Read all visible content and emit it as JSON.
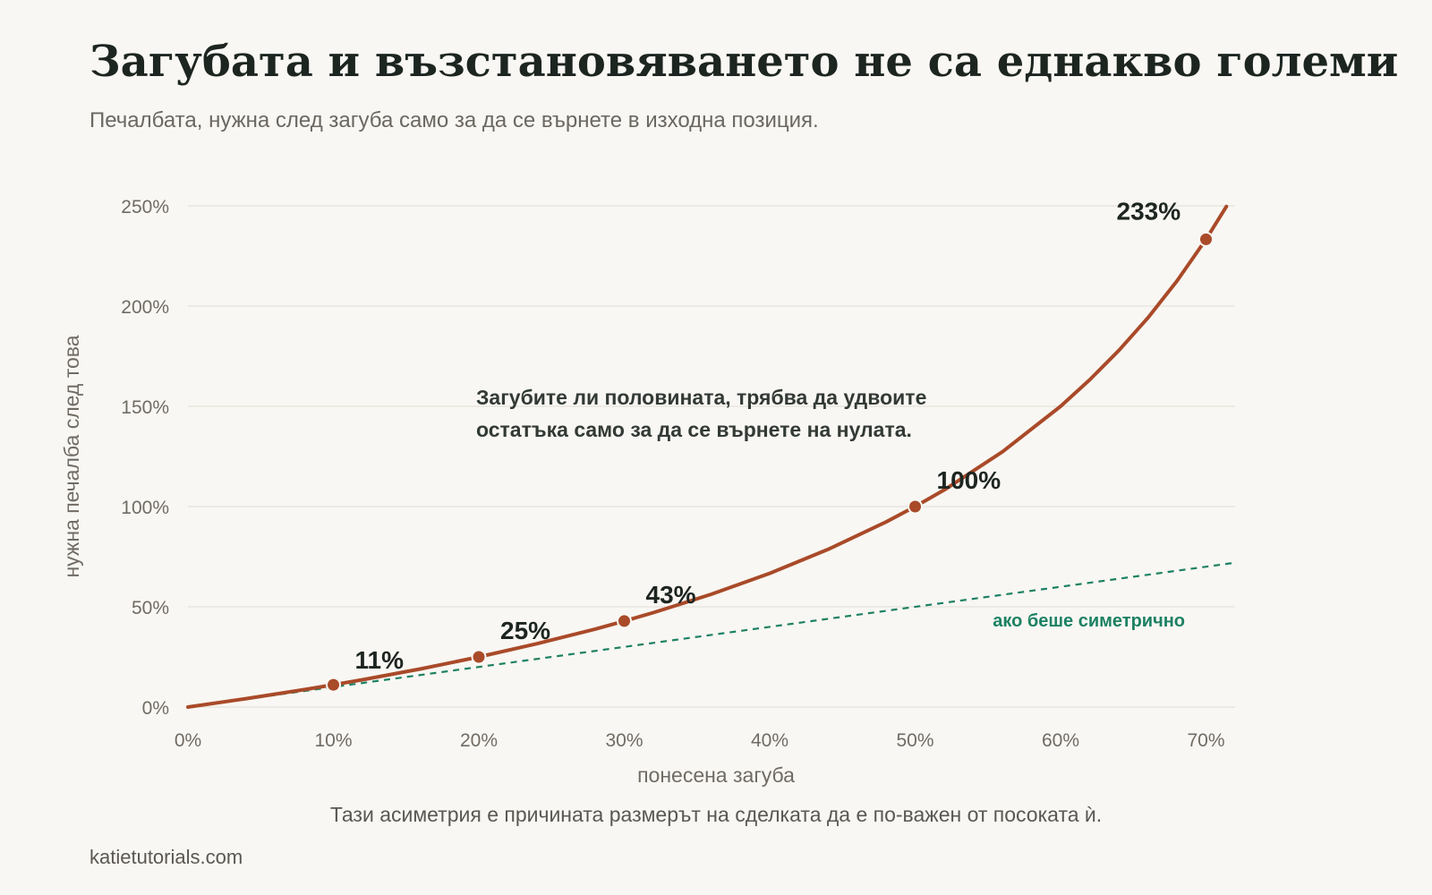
{
  "title": "Загубата и възстановяването не са еднакво големи",
  "subtitle": "Печалбата, нужна след загуба само за да се върнете в изходна позиция.",
  "caption": "Тази асиметрия е причината размерът на сделката да е по-важен от посоката ѝ.",
  "source": "katietutorials.com",
  "colors": {
    "curve": "#a94a29",
    "reference": "#1d8164",
    "grid": "#e5e2dc",
    "tick_text": "#706b64",
    "label_text": "#1d2521",
    "annotation_text": "#333a36",
    "background": "#f9f7f3"
  },
  "chart_data": {
    "type": "line",
    "xlabel": "понесена загуба",
    "ylabel": "нужна печалба след това",
    "xlim": [
      0,
      72
    ],
    "ylim": [
      0,
      250
    ],
    "x_ticks": [
      0,
      10,
      20,
      30,
      40,
      50,
      60,
      70
    ],
    "x_tick_labels": [
      "0%",
      "10%",
      "20%",
      "30%",
      "40%",
      "50%",
      "60%",
      "70%"
    ],
    "y_ticks": [
      0,
      50,
      100,
      150,
      200,
      250
    ],
    "y_tick_labels": [
      "0%",
      "50%",
      "100%",
      "150%",
      "200%",
      "250%"
    ],
    "grid": "horizontal",
    "series": [
      {
        "style": "solid",
        "x": [
          0,
          4,
          8,
          10,
          12,
          16,
          20,
          24,
          28,
          30,
          32,
          36,
          40,
          44,
          48,
          50,
          52,
          56,
          60,
          62,
          64,
          66,
          68,
          70,
          71.4
        ],
        "y": [
          0,
          4.2,
          8.7,
          11.1,
          13.6,
          19.0,
          25.0,
          31.6,
          38.9,
          42.9,
          47.1,
          56.3,
          66.7,
          78.6,
          92.3,
          100.0,
          108.3,
          127.3,
          150.0,
          163.2,
          177.8,
          194.1,
          212.5,
          233.3,
          249.7
        ]
      },
      {
        "name": "ако беше симетрично",
        "style": "dashed",
        "x": [
          0,
          72
        ],
        "y": [
          0,
          72
        ]
      }
    ],
    "highlighted_points": [
      {
        "x": 10,
        "y": 11.1,
        "label": "11%"
      },
      {
        "x": 20,
        "y": 25.0,
        "label": "25%"
      },
      {
        "x": 30,
        "y": 42.9,
        "label": "43%"
      },
      {
        "x": 50,
        "y": 100.0,
        "label": "100%"
      },
      {
        "x": 70,
        "y": 233.3,
        "label": "233%"
      }
    ],
    "annotation": [
      "Загубите ли половината, трябва да удвоите",
      "остатъка само за да се върнете на нулата."
    ]
  }
}
